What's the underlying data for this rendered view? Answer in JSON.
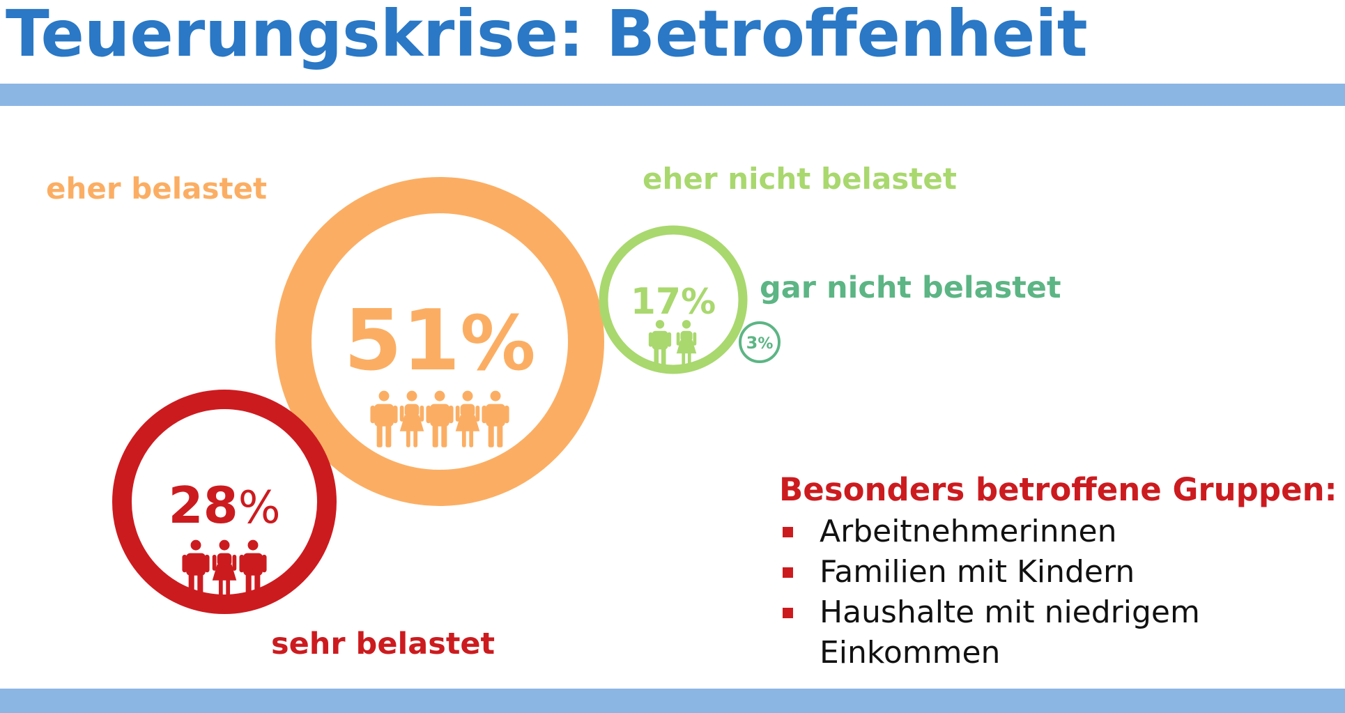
{
  "title": "Teuerungskrise: Betroffenheit",
  "colors": {
    "title": "#2a78c6",
    "band": "#8bb6e4",
    "sehr": "#cc1b1f",
    "eher": "#fbae63",
    "eher_nicht": "#a9d86e",
    "gar_nicht": "#5cb584",
    "list_text": "#111111"
  },
  "chart_data": {
    "type": "bubble",
    "title": "Teuerungskrise: Betroffenheit",
    "unit": "%",
    "categories": [
      "sehr belastet",
      "eher belastet",
      "eher nicht belastet",
      "gar nicht belastet"
    ],
    "values": [
      28,
      51,
      17,
      3
    ],
    "value_labels": [
      "28%",
      "51%",
      "17%",
      "3%"
    ],
    "person_icons": [
      3,
      5,
      2,
      0
    ],
    "series": [
      {
        "label": "sehr belastet",
        "value": 28,
        "display": "28%",
        "icons": 3,
        "color": "#cc1b1f"
      },
      {
        "label": "eher belastet",
        "value": 51,
        "display": "51%",
        "icons": 5,
        "color": "#fbae63"
      },
      {
        "label": "eher nicht belastet",
        "value": 17,
        "display": "17%",
        "icons": 2,
        "color": "#a9d86e"
      },
      {
        "label": "gar nicht belastet",
        "value": 3,
        "display": "3%",
        "icons": 0,
        "color": "#5cb584"
      }
    ]
  },
  "groups": {
    "title": "Besonders betroffene Gruppen:",
    "items": [
      "Arbeitnehmerinnen",
      "Familien mit Kindern",
      "Haushalte mit niedrigem Einkommen"
    ]
  }
}
